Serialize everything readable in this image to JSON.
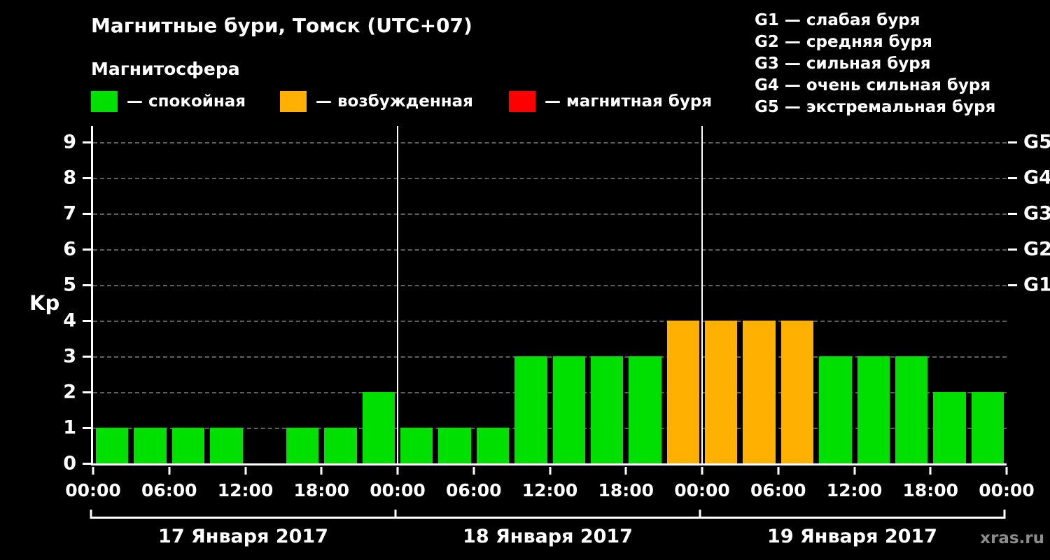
{
  "header": {
    "title": "Магнитные бури, Томск (UTC+07)",
    "subtitle": "Магнитосфера",
    "legend": [
      {
        "label": "— спокойная",
        "color": "#00e000"
      },
      {
        "label": "— возбужденная",
        "color": "#ffb000"
      },
      {
        "label": "— магнитная буря",
        "color": "#ff0000"
      }
    ],
    "storm_scale": [
      "G1 — слабая буря",
      "G2 — средняя буря",
      "G3 — сильная буря",
      "G4 — очень сильная буря",
      "G5 — экстремальная буря"
    ]
  },
  "chart_data": {
    "type": "bar",
    "title": "Магнитные бури, Томск (UTC+07)",
    "subtitle": "Магнитосфера",
    "ylabel": "Kp",
    "xlabel": "",
    "ylim": [
      0,
      9.45
    ],
    "yticks": [
      0,
      1,
      2,
      3,
      4,
      5,
      6,
      7,
      8,
      9
    ],
    "grid": "horizontal-dashed",
    "bar_interval_hours": 3,
    "x_tick_labels": [
      "00:00",
      "06:00",
      "12:00",
      "18:00",
      "00:00",
      "06:00",
      "12:00",
      "18:00",
      "00:00",
      "06:00",
      "12:00",
      "18:00",
      "00:00"
    ],
    "g_levels": [
      {
        "kp": 5,
        "label": "G1"
      },
      {
        "kp": 6,
        "label": "G2"
      },
      {
        "kp": 7,
        "label": "G3"
      },
      {
        "kp": 8,
        "label": "G4"
      },
      {
        "kp": 9,
        "label": "G5"
      }
    ],
    "colors": {
      "quiet": "#00e000",
      "excited": "#ffb000",
      "storm": "#ff0000",
      "axis": "#ffffff",
      "grid": "#5f5f5f"
    },
    "color_rule": "Kp<=3 quiet (green), Kp=4 excited (orange), Kp>=5 storm (red)",
    "days": [
      {
        "date": "17 Января 2017",
        "values": [
          1,
          1,
          1,
          1,
          null,
          1,
          1,
          2
        ]
      },
      {
        "date": "18 Января 2017",
        "values": [
          1,
          1,
          1,
          3,
          3,
          3,
          3,
          4
        ]
      },
      {
        "date": "19 Января 2017",
        "values": [
          4,
          4,
          4,
          3,
          3,
          3,
          2,
          2
        ]
      }
    ]
  },
  "footer": {
    "watermark": "xras.ru"
  }
}
